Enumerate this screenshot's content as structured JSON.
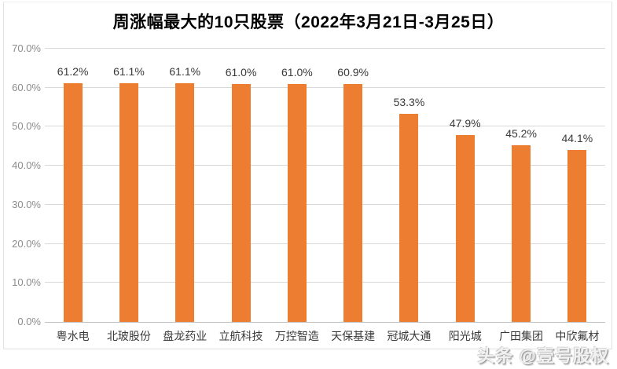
{
  "title": "周涨幅最大的10只股票（2022年3月21日-3月25日）",
  "watermark": "头条 @壹号股权",
  "colors": {
    "bar": "#ED7D31",
    "gridline": "#D9D9D9",
    "axis_line": "#BFBFBF",
    "ytick_label": "#8C8C8C",
    "data_label": "#3A3A3A",
    "category_label": "#3A3A3A",
    "title": "#000000",
    "frame_border": "#E2E2E2",
    "background": "#FFFFFF"
  },
  "chart_data": {
    "type": "bar",
    "title": "周涨幅最大的10只股票（2022年3月21日-3月25日）",
    "categories": [
      "粤水电",
      "北玻股份",
      "盘龙药业",
      "立航科技",
      "万控智造",
      "天保基建",
      "冠城大通",
      "阳光城",
      "广田集团",
      "中欣氟材"
    ],
    "values": [
      61.2,
      61.1,
      61.1,
      61.0,
      61.0,
      60.9,
      53.3,
      47.9,
      45.2,
      44.1
    ],
    "value_labels": [
      "61.2%",
      "61.1%",
      "61.1%",
      "61.0%",
      "61.0%",
      "60.9%",
      "53.3%",
      "47.9%",
      "45.2%",
      "44.1%"
    ],
    "xlabel": "",
    "ylabel": "",
    "ylim": [
      0,
      70
    ],
    "yticks": [
      0,
      10,
      20,
      30,
      40,
      50,
      60,
      70
    ],
    "ytick_labels": [
      "0.0%",
      "10.0%",
      "20.0%",
      "30.0%",
      "40.0%",
      "50.0%",
      "60.0%",
      "70.0%"
    ],
    "grid": true,
    "legend": false,
    "bar_color": "#ED7D31",
    "data_labels_shown": true
  }
}
